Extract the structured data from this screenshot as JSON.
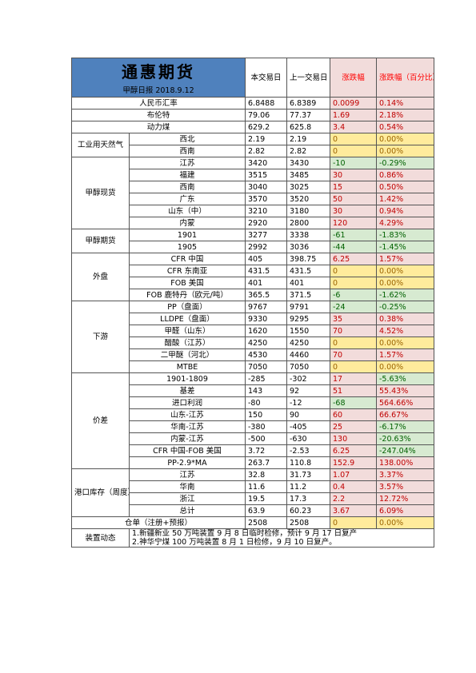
{
  "header": {
    "title": "通惠期货",
    "subtitle": "甲醇日报 2018.9.12",
    "col_today": "本交易日",
    "col_prev": "上一交易日",
    "col_change": "涨跌幅",
    "col_pct": "涨跌幅（百分比）"
  },
  "rows": [
    {
      "item": "人民币汇率",
      "today": "6.8488",
      "prev": "6.8389",
      "change": "0.0099",
      "pct": "0.14%",
      "tone": "red"
    },
    {
      "item": "布伦特",
      "today": "79.06",
      "prev": "77.37",
      "change": "1.69",
      "pct": "2.18%",
      "tone": "red"
    },
    {
      "item": "动力煤",
      "today": "629.2",
      "prev": "625.8",
      "change": "3.4",
      "pct": "0.54%",
      "tone": "red"
    },
    {
      "group": "工业用天然气",
      "item": "西北",
      "today": "2.19",
      "prev": "2.19",
      "change": "0",
      "pct": "0.00%",
      "tone": "yellow"
    },
    {
      "item": "西南",
      "today": "2.82",
      "prev": "2.82",
      "change": "0",
      "pct": "0.00%",
      "tone": "yellow"
    },
    {
      "group": "甲醇现货",
      "item": "江苏",
      "today": "3420",
      "prev": "3430",
      "change": "-10",
      "pct": "-0.29%",
      "tone": "green"
    },
    {
      "item": "福建",
      "today": "3515",
      "prev": "3485",
      "change": "30",
      "pct": "0.86%",
      "tone": "red"
    },
    {
      "item": "西南",
      "today": "3040",
      "prev": "3025",
      "change": "15",
      "pct": "0.50%",
      "tone": "red"
    },
    {
      "item": "广东",
      "today": "3570",
      "prev": "3520",
      "change": "50",
      "pct": "1.42%",
      "tone": "red"
    },
    {
      "item": "山东（中）",
      "today": "3210",
      "prev": "3180",
      "change": "30",
      "pct": "0.94%",
      "tone": "red"
    },
    {
      "item": "内蒙",
      "today": "2920",
      "prev": "2800",
      "change": "120",
      "pct": "4.29%",
      "tone": "red"
    },
    {
      "group": "甲醇期货",
      "item": "1901",
      "today": "3277",
      "prev": "3338",
      "change": "-61",
      "pct": "-1.83%",
      "tone": "green"
    },
    {
      "item": "1905",
      "today": "2992",
      "prev": "3036",
      "change": "-44",
      "pct": "-1.45%",
      "tone": "green"
    },
    {
      "group": "外盘",
      "item": "CFR 中国",
      "today": "405",
      "prev": "398.75",
      "change": "6.25",
      "pct": "1.57%",
      "tone": "red"
    },
    {
      "item": "CFR 东南亚",
      "today": "431.5",
      "prev": "431.5",
      "change": "0",
      "pct": "0.00%",
      "tone": "yellow"
    },
    {
      "item": "FOB 美国",
      "today": "401",
      "prev": "401",
      "change": "0",
      "pct": "0.00%",
      "tone": "yellow"
    },
    {
      "item": "FOB 鹿特丹（欧元/吨）",
      "today": "365.5",
      "prev": "371.5",
      "change": "-6",
      "pct": "-1.62%",
      "tone": "green"
    },
    {
      "group": "下游",
      "item": "PP（盘面）",
      "today": "9767",
      "prev": "9791",
      "change": "-24",
      "pct": "-0.25%",
      "tone": "green"
    },
    {
      "item": "LLDPE（盘面）",
      "today": "9330",
      "prev": "9295",
      "change": "35",
      "pct": "0.38%",
      "tone": "red"
    },
    {
      "item": "甲醛（山东）",
      "today": "1620",
      "prev": "1550",
      "change": "70",
      "pct": "4.52%",
      "tone": "red"
    },
    {
      "item": "醋酸（江苏）",
      "today": "4250",
      "prev": "4250",
      "change": "0",
      "pct": "0.00%",
      "tone": "yellow"
    },
    {
      "item": "二甲醚（河北）",
      "today": "4530",
      "prev": "4460",
      "change": "70",
      "pct": "1.57%",
      "tone": "red"
    },
    {
      "item": "MTBE",
      "today": "7050",
      "prev": "7050",
      "change": "0",
      "pct": "0.00%",
      "tone": "yellow"
    },
    {
      "group": "价差",
      "item": "1901-1809",
      "today": "-285",
      "prev": "-302",
      "change": "17",
      "pct": "-5.63%",
      "tone": "red",
      "pct_tone": "green"
    },
    {
      "item": "基差",
      "today": "143",
      "prev": "92",
      "change": "51",
      "pct": "55.43%",
      "tone": "red"
    },
    {
      "item": "进口利润",
      "today": "-80",
      "prev": "-12",
      "change": "-68",
      "pct": "564.66%",
      "tone": "green",
      "pct_tone": "red"
    },
    {
      "item": "山东-江苏",
      "today": "150",
      "prev": "90",
      "change": "60",
      "pct": "66.67%",
      "tone": "red"
    },
    {
      "item": "华南-江苏",
      "today": "-380",
      "prev": "-405",
      "change": "25",
      "pct": "-6.17%",
      "tone": "red",
      "pct_tone": "green"
    },
    {
      "item": "内蒙-江苏",
      "today": "-500",
      "prev": "-630",
      "change": "130",
      "pct": "-20.63%",
      "tone": "red",
      "pct_tone": "green"
    },
    {
      "item": "CFR 中国-FOB 美国",
      "today": "3.72",
      "prev": "-2.53",
      "change": "6.25",
      "pct": "-247.04%",
      "tone": "red",
      "pct_tone": "green"
    },
    {
      "item": "PP-2.9*MA",
      "today": "263.7",
      "prev": "110.8",
      "change": "152.9",
      "pct": "138.00%",
      "tone": "red"
    },
    {
      "group": "港口库存（周度）",
      "item": "江苏",
      "today": "32.8",
      "prev": "31.73",
      "change": "1.07",
      "pct": "3.37%",
      "tone": "red"
    },
    {
      "item": "华南",
      "today": "11.6",
      "prev": "11.2",
      "change": "0.4",
      "pct": "3.57%",
      "tone": "red"
    },
    {
      "item": "浙江",
      "today": "19.5",
      "prev": "17.3",
      "change": "2.2",
      "pct": "12.72%",
      "tone": "red"
    },
    {
      "item": "总计",
      "today": "63.9",
      "prev": "60.23",
      "change": "3.67",
      "pct": "6.09%",
      "tone": "red"
    },
    {
      "item": "仓单（注册+预报）",
      "today": "2508",
      "prev": "2508",
      "change": "0",
      "pct": "0.00%",
      "tone": "yellow"
    }
  ],
  "notes": {
    "label": "装置动态",
    "lines": [
      "1.新疆新业 50 万吨装置 9 月 8 日临时检修，预计 9 月 17 日复产",
      "2.神华宁煤 100 万吨装置 8 月 1 日检修，9 月 10 日复产。"
    ]
  },
  "colors": {
    "title_bg": "#4f81bd",
    "up": "#f2dcdb",
    "down": "#d7ead1",
    "flat": "#ffeb9c"
  }
}
